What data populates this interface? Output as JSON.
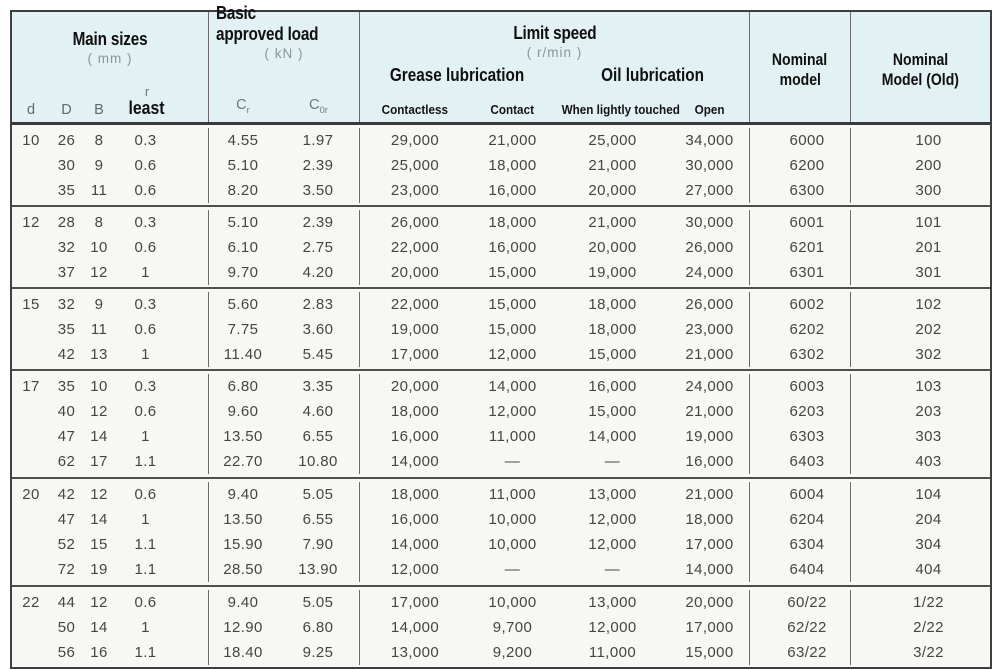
{
  "colors": {
    "header_bg": "#e2f1f3",
    "body_bg": "#f7f7f4",
    "border_dark": "#3f3f3f",
    "border_mid": "#6b6b6b",
    "text_dark": "#101010",
    "text_gray": "#8b9598",
    "text_body": "#454545"
  },
  "table": {
    "header": {
      "main_sizes": {
        "title": "Main sizes",
        "unit": "( mm )",
        "d": "d",
        "D": "D",
        "B": "B",
        "r": "r",
        "least": "least"
      },
      "basic_load": {
        "line1": "Basic",
        "line2": "approved load",
        "unit": "( kN )",
        "cr_base": "C",
        "cr_sub": "r",
        "cor_base": "C",
        "cor_sub": "0r"
      },
      "limit_speed": {
        "title": "Limit speed",
        "unit": "( r/min )",
        "grease": "Grease lubrication",
        "oil": "Oil lubrication",
        "cols": [
          "Contactless",
          "Contact",
          "When lightly touched",
          "Open"
        ]
      },
      "nominal": {
        "line1": "Nominal",
        "line2": "model"
      },
      "nominal_old": {
        "line1": "Nominal",
        "line2": "Model (Old)"
      }
    },
    "groups": [
      {
        "d": "10",
        "rows": [
          [
            "10",
            "26",
            "8",
            "0.3",
            "4.55",
            "1.97",
            "29,000",
            "21,000",
            "25,000",
            "34,000",
            "6000",
            "100"
          ],
          [
            "",
            "30",
            "9",
            "0.6",
            "5.10",
            "2.39",
            "25,000",
            "18,000",
            "21,000",
            "30,000",
            "6200",
            "200"
          ],
          [
            "",
            "35",
            "11",
            "0.6",
            "8.20",
            "3.50",
            "23,000",
            "16,000",
            "20,000",
            "27,000",
            "6300",
            "300"
          ]
        ]
      },
      {
        "d": "12",
        "rows": [
          [
            "12",
            "28",
            "8",
            "0.3",
            "5.10",
            "2.39",
            "26,000",
            "18,000",
            "21,000",
            "30,000",
            "6001",
            "101"
          ],
          [
            "",
            "32",
            "10",
            "0.6",
            "6.10",
            "2.75",
            "22,000",
            "16,000",
            "20,000",
            "26,000",
            "6201",
            "201"
          ],
          [
            "",
            "37",
            "12",
            "1",
            "9.70",
            "4.20",
            "20,000",
            "15,000",
            "19,000",
            "24,000",
            "6301",
            "301"
          ]
        ]
      },
      {
        "d": "15",
        "rows": [
          [
            "15",
            "32",
            "9",
            "0.3",
            "5.60",
            "2.83",
            "22,000",
            "15,000",
            "18,000",
            "26,000",
            "6002",
            "102"
          ],
          [
            "",
            "35",
            "11",
            "0.6",
            "7.75",
            "3.60",
            "19,000",
            "15,000",
            "18,000",
            "23,000",
            "6202",
            "202"
          ],
          [
            "",
            "42",
            "13",
            "1",
            "11.40",
            "5.45",
            "17,000",
            "12,000",
            "15,000",
            "21,000",
            "6302",
            "302"
          ]
        ]
      },
      {
        "d": "17",
        "rows": [
          [
            "17",
            "35",
            "10",
            "0.3",
            "6.80",
            "3.35",
            "20,000",
            "14,000",
            "16,000",
            "24,000",
            "6003",
            "103"
          ],
          [
            "",
            "40",
            "12",
            "0.6",
            "9.60",
            "4.60",
            "18,000",
            "12,000",
            "15,000",
            "21,000",
            "6203",
            "203"
          ],
          [
            "",
            "47",
            "14",
            "1",
            "13.50",
            "6.55",
            "16,000",
            "11,000",
            "14,000",
            "19,000",
            "6303",
            "303"
          ],
          [
            "",
            "62",
            "17",
            "1.1",
            "22.70",
            "10.80",
            "14,000",
            "—",
            "—",
            "16,000",
            "6403",
            "403"
          ]
        ]
      },
      {
        "d": "20",
        "rows": [
          [
            "20",
            "42",
            "12",
            "0.6",
            "9.40",
            "5.05",
            "18,000",
            "11,000",
            "13,000",
            "21,000",
            "6004",
            "104"
          ],
          [
            "",
            "47",
            "14",
            "1",
            "13.50",
            "6.55",
            "16,000",
            "10,000",
            "12,000",
            "18,000",
            "6204",
            "204"
          ],
          [
            "",
            "52",
            "15",
            "1.1",
            "15.90",
            "7.90",
            "14,000",
            "10,000",
            "12,000",
            "17,000",
            "6304",
            "304"
          ],
          [
            "",
            "72",
            "19",
            "1.1",
            "28.50",
            "13.90",
            "12,000",
            "—",
            "—",
            "14,000",
            "6404",
            "404"
          ]
        ]
      },
      {
        "d": "22",
        "rows": [
          [
            "22",
            "44",
            "12",
            "0.6",
            "9.40",
            "5.05",
            "17,000",
            "10,000",
            "13,000",
            "20,000",
            "60/22",
            "1/22"
          ],
          [
            "",
            "50",
            "14",
            "1",
            "12.90",
            "6.80",
            "14,000",
            "9,700",
            "12,000",
            "17,000",
            "62/22",
            "2/22"
          ],
          [
            "",
            "56",
            "16",
            "1.1",
            "18.40",
            "9.25",
            "13,000",
            "9,200",
            "11,000",
            "15,000",
            "63/22",
            "3/22"
          ]
        ]
      }
    ]
  }
}
